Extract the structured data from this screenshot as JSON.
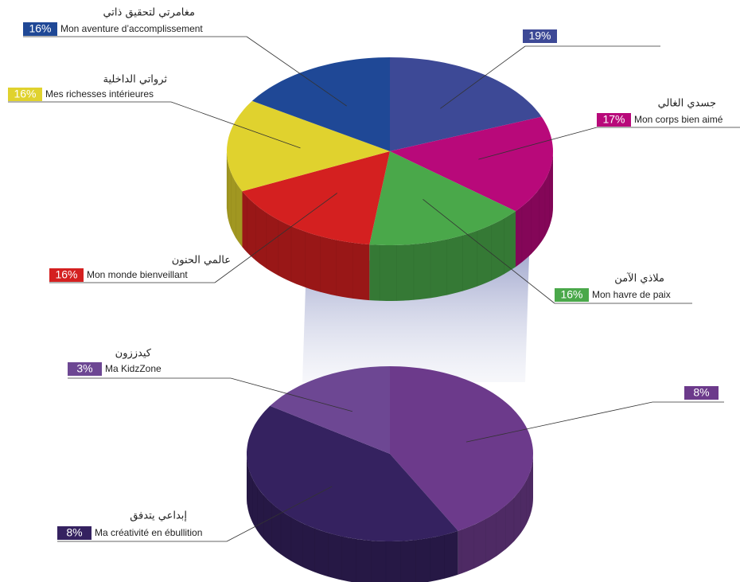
{
  "chart_data": [
    {
      "type": "pie",
      "categories": [
        null,
        "Mon corps bien aimé",
        "Mon havre de paix",
        "Mon monde bienveillant",
        "Mes richesses intérieures",
        "Mon aventure d’accomplissement"
      ],
      "categories_ar": [
        null,
        "جسدي الغالي",
        "ملاذي الآمن",
        "عالمي الحنون",
        "ثرواتي الداخلية",
        "مغامرتي لتحقيق ذاتي"
      ],
      "values": [
        19,
        17,
        16,
        16,
        16,
        16
      ],
      "value_labels": [
        "19%",
        "17%",
        "16%",
        "16%",
        "16%",
        "16%"
      ],
      "colors": [
        "#3d4996",
        "#b8097a",
        "#4aa84a",
        "#d42020",
        "#e0d22e",
        "#1f4896"
      ]
    },
    {
      "type": "pie",
      "categories": [
        null,
        "Ma créativité en ébullition",
        "Ma KidzZone"
      ],
      "categories_ar": [
        null,
        "إبداعي يتدفق",
        "كيدززون"
      ],
      "values": [
        8,
        8,
        3
      ],
      "value_labels": [
        "8%",
        "8%",
        "3%"
      ],
      "colors": [
        "#6c3a8b",
        "#352260",
        "#6d4793"
      ]
    }
  ]
}
